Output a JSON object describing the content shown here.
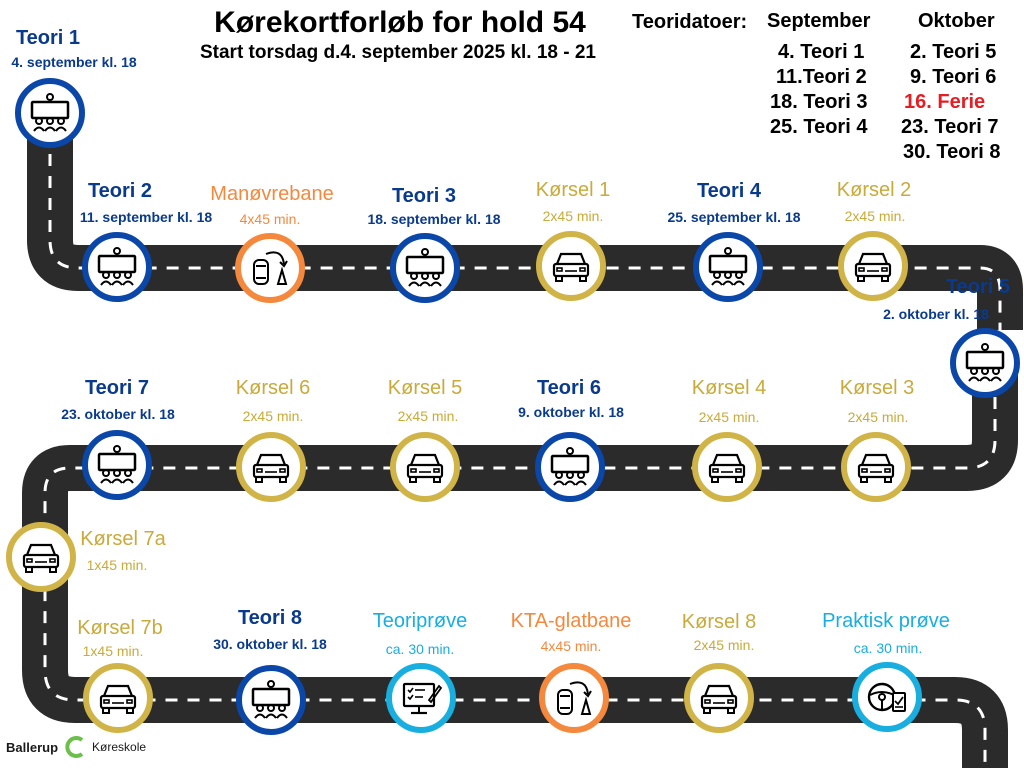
{
  "header": {
    "title": "Kørekortforløb for hold 54",
    "subtitle": "Start torsdag d.4. september 2025 kl. 18 - 21"
  },
  "schedule": {
    "label": "Teoridatoer:",
    "september": {
      "heading": "September",
      "items": [
        "4. Teori 1",
        "11.Teori 2",
        "18. Teori 3",
        "25. Teori 4"
      ]
    },
    "oktober": {
      "heading": "Oktober",
      "items": [
        "2. Teori 5",
        "9. Teori 6",
        "16. Ferie",
        "23. Teori 7",
        "30. Teori 8"
      ]
    }
  },
  "stops": [
    {
      "id": "teori1",
      "label": "Teori 1",
      "sub": "4. september kl. 18",
      "kind": "theory",
      "color": "#0a3a8c"
    },
    {
      "id": "teori2",
      "label": "Teori 2",
      "sub": "11. september kl. 18",
      "kind": "theory",
      "color": "#0a3a8c"
    },
    {
      "id": "manovrebane",
      "label": "Manøvrebane",
      "sub": "4x45 min.",
      "kind": "maneuver",
      "color": "#f4893e"
    },
    {
      "id": "teori3",
      "label": "Teori 3",
      "sub": "18. september kl. 18",
      "kind": "theory",
      "color": "#0a3a8c"
    },
    {
      "id": "korsel1",
      "label": "Kørsel 1",
      "sub": "2x45 min.",
      "kind": "car",
      "color": "#c9aa3a"
    },
    {
      "id": "teori4",
      "label": "Teori 4",
      "sub": "25. september kl. 18",
      "kind": "theory",
      "color": "#0a3a8c"
    },
    {
      "id": "korsel2",
      "label": "Kørsel 2",
      "sub": "2x45 min.",
      "kind": "car",
      "color": "#c9aa3a"
    },
    {
      "id": "teori5",
      "label": "Teori 5",
      "sub": "2. oktober kl. 18",
      "kind": "theory",
      "color": "#0a3a8c"
    },
    {
      "id": "korsel3",
      "label": "Kørsel 3",
      "sub": "2x45 min.",
      "kind": "car",
      "color": "#c9aa3a"
    },
    {
      "id": "korsel4",
      "label": "Kørsel 4",
      "sub": "2x45 min.",
      "kind": "car",
      "color": "#c9aa3a"
    },
    {
      "id": "teori6",
      "label": "Teori 6",
      "sub": "9. oktober kl. 18",
      "kind": "theory",
      "color": "#0a3a8c"
    },
    {
      "id": "korsel5",
      "label": "Kørsel 5",
      "sub": "2x45 min.",
      "kind": "car",
      "color": "#c9aa3a"
    },
    {
      "id": "korsel6",
      "label": "Kørsel 6",
      "sub": "2x45 min.",
      "kind": "car",
      "color": "#c9aa3a"
    },
    {
      "id": "teori7",
      "label": "Teori 7",
      "sub": "23. oktober kl. 18",
      "kind": "theory",
      "color": "#0a3a8c"
    },
    {
      "id": "korsel7a",
      "label": "Kørsel 7a",
      "sub": "1x45 min.",
      "kind": "car",
      "color": "#c9aa3a"
    },
    {
      "id": "korsel7b",
      "label": "Kørsel 7b",
      "sub": "1x45 min.",
      "kind": "car",
      "color": "#c9aa3a"
    },
    {
      "id": "teori8",
      "label": "Teori 8",
      "sub": "30. oktober kl. 18",
      "kind": "theory",
      "color": "#0a3a8c"
    },
    {
      "id": "teoriprove",
      "label": "Teoriprøve",
      "sub": "ca. 30 min.",
      "kind": "test",
      "color": "#18aee0"
    },
    {
      "id": "kta",
      "label": "KTA-glatbane",
      "sub": "4x45 min.",
      "kind": "maneuver",
      "color": "#f4893e"
    },
    {
      "id": "korsel8",
      "label": "Kørsel 8",
      "sub": "2x45 min.",
      "kind": "car",
      "color": "#c9aa3a"
    },
    {
      "id": "praktisk",
      "label": "Praktisk prøve",
      "sub": "ca. 30 min.",
      "kind": "practical",
      "color": "#18aee0"
    }
  ],
  "logo": {
    "name": "Ballerup",
    "tagline": "Køreskole"
  }
}
